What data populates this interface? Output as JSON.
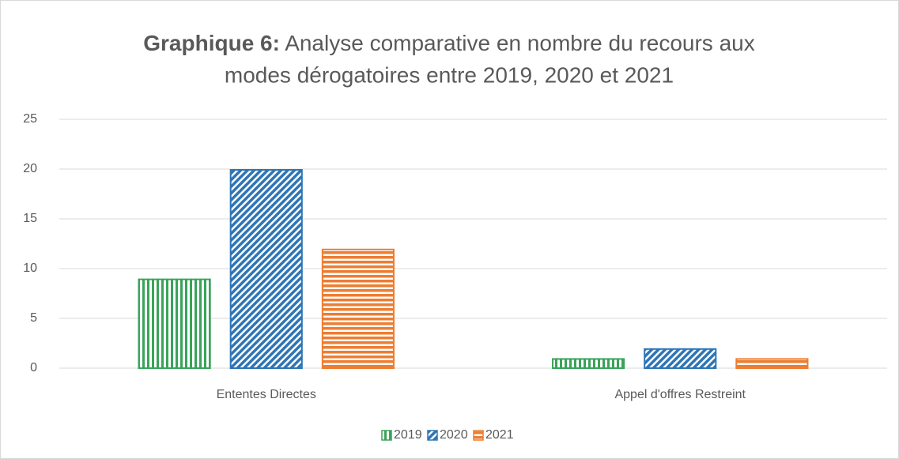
{
  "chart_data": {
    "type": "bar",
    "title": {
      "bold": "Graphique 6:",
      "lines": [
        "Analyse comparative en nombre du recours aux",
        "modes dérogatoires entre 2019, 2020 et 2021"
      ]
    },
    "categories": [
      "Ententes Directes",
      "Appel d'offres Restreint"
    ],
    "series": [
      {
        "name": "2019",
        "color": "#3aa35a",
        "values": [
          9,
          1
        ]
      },
      {
        "name": "2020",
        "color": "#2e75b6",
        "values": [
          20,
          2
        ]
      },
      {
        "name": "2021",
        "color": "#ed7d31",
        "values": [
          12,
          1
        ]
      }
    ],
    "ylim": [
      0,
      25
    ],
    "yticks": [
      0,
      5,
      10,
      15,
      20,
      25
    ],
    "grid": true,
    "legend": "bottom"
  }
}
